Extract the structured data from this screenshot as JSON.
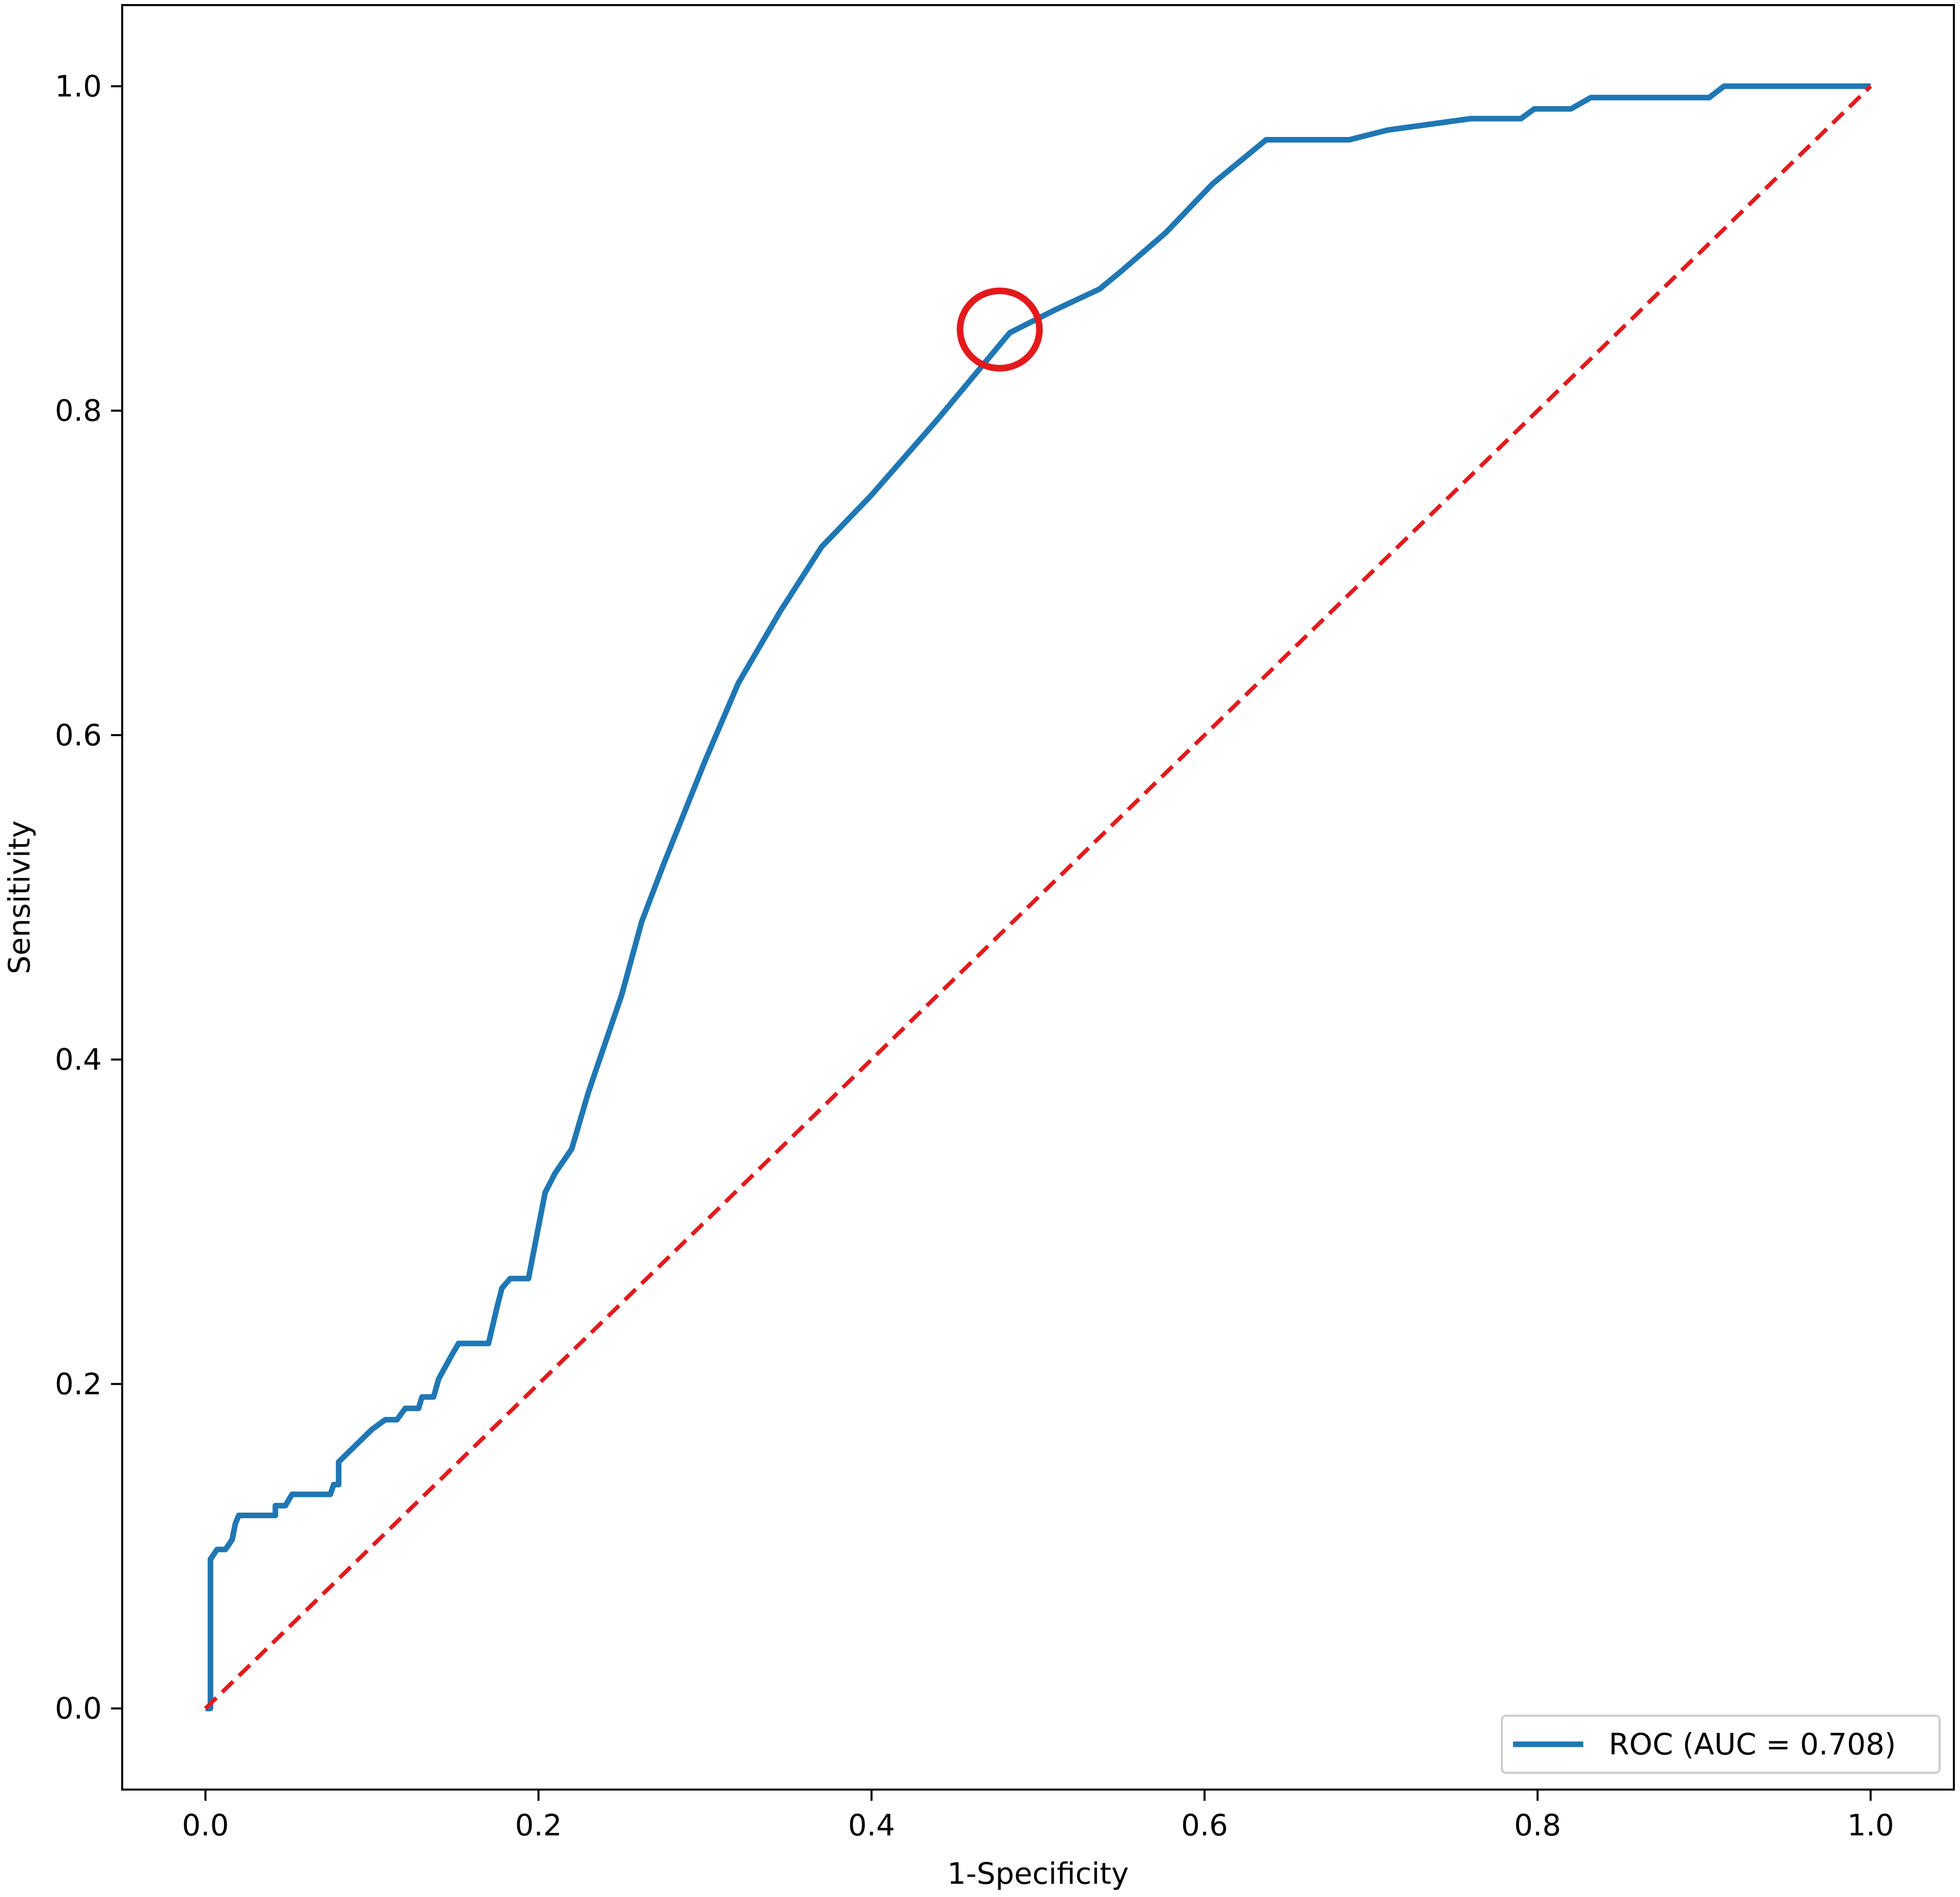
{
  "chart_data": {
    "type": "line",
    "title": "",
    "xlabel": "1-Specificity",
    "ylabel": "Sensitivity",
    "xlim": [
      -0.05,
      1.05
    ],
    "ylim": [
      -0.05,
      1.05
    ],
    "grid": false,
    "legend_position": "lower-right",
    "x_ticks": [
      "0.0",
      "0.2",
      "0.4",
      "0.6",
      "0.8",
      "1.0"
    ],
    "y_ticks": [
      "0.0",
      "0.2",
      "0.4",
      "0.6",
      "0.8",
      "1.0"
    ],
    "series": [
      {
        "name": "ROC (AUC = 0.708)",
        "color": "#1f77b4",
        "style": "solid",
        "x": [
          0.0,
          0.003,
          0.003,
          0.007,
          0.012,
          0.016,
          0.018,
          0.02,
          0.042,
          0.042,
          0.048,
          0.052,
          0.075,
          0.077,
          0.08,
          0.08,
          0.09,
          0.1,
          0.108,
          0.115,
          0.12,
          0.128,
          0.13,
          0.137,
          0.14,
          0.148,
          0.152,
          0.17,
          0.175,
          0.178,
          0.183,
          0.194,
          0.2,
          0.204,
          0.21,
          0.22,
          0.23,
          0.25,
          0.262,
          0.275,
          0.3,
          0.32,
          0.345,
          0.37,
          0.4,
          0.44,
          0.483,
          0.51,
          0.537,
          0.55,
          0.577,
          0.605,
          0.637,
          0.687,
          0.71,
          0.76,
          0.79,
          0.798,
          0.82,
          0.832,
          0.857,
          0.903,
          0.912,
          1.0
        ],
        "y": [
          0.0,
          0.0,
          0.092,
          0.098,
          0.098,
          0.104,
          0.114,
          0.119,
          0.119,
          0.125,
          0.125,
          0.132,
          0.132,
          0.138,
          0.138,
          0.152,
          0.162,
          0.172,
          0.178,
          0.178,
          0.185,
          0.185,
          0.192,
          0.192,
          0.203,
          0.218,
          0.225,
          0.225,
          0.247,
          0.259,
          0.265,
          0.265,
          0.297,
          0.318,
          0.33,
          0.345,
          0.38,
          0.44,
          0.485,
          0.52,
          0.584,
          0.632,
          0.676,
          0.716,
          0.748,
          0.795,
          0.848,
          0.862,
          0.875,
          0.886,
          0.91,
          0.94,
          0.967,
          0.967,
          0.973,
          0.98,
          0.98,
          0.986,
          0.986,
          0.993,
          0.993,
          0.993,
          1.0,
          1.0
        ]
      },
      {
        "name": "",
        "color": "#e31a1c",
        "style": "dashed",
        "x": [
          0.0,
          1.0
        ],
        "y": [
          0.0,
          1.0
        ]
      }
    ],
    "annotations": [
      {
        "type": "circle",
        "x": 0.477,
        "y": 0.85,
        "color": "#e31a1c"
      }
    ]
  }
}
